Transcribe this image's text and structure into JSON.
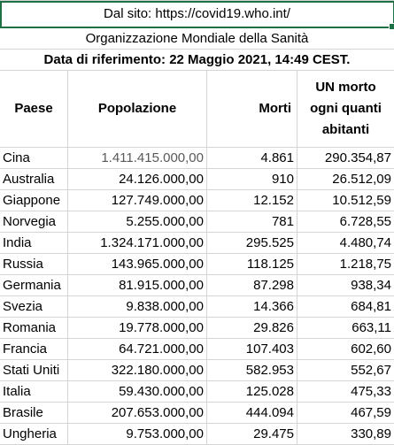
{
  "header": {
    "source": "Dal sito: https://covid19.who.int/",
    "organization": "Organizzazione Mondiale della Sanità",
    "reference_date": "Data di riferimento: 22 Maggio 2021, 14:49 CEST."
  },
  "columns": [
    "Paese",
    "Popolazione",
    "Morti",
    "UN morto ogni quanti abitanti"
  ],
  "rows": [
    [
      "Cina",
      "1.411.415.000,00",
      "4.861",
      "290.354,87"
    ],
    [
      "Australia",
      "24.126.000,00",
      "910",
      "26.512,09"
    ],
    [
      "Giappone",
      "127.749.000,00",
      "12.152",
      "10.512,59"
    ],
    [
      "Norvegia",
      "5.255.000,00",
      "781",
      "6.728,55"
    ],
    [
      "India",
      "1.324.171.000,00",
      "295.525",
      "4.480,74"
    ],
    [
      "Russia",
      "143.965.000,00",
      "118.125",
      "1.218,75"
    ],
    [
      "Germania",
      "81.915.000,00",
      "87.298",
      "938,34"
    ],
    [
      "Svezia",
      "9.838.000,00",
      "14.366",
      "684,81"
    ],
    [
      "Romania",
      "19.778.000,00",
      "29.826",
      "663,11"
    ],
    [
      "Francia",
      "64.721.000,00",
      "107.403",
      "602,60"
    ],
    [
      "Stati Uniti",
      "322.180.000,00",
      "582.953",
      "552,67"
    ],
    [
      "Italia",
      "59.430.000,00",
      "125.028",
      "475,33"
    ],
    [
      "Brasile",
      "207.653.000,00",
      "444.094",
      "467,59"
    ],
    [
      "Ungheria",
      "9.753.000,00",
      "29.475",
      "330,89"
    ]
  ],
  "colors": {
    "selection": "#1e7145",
    "gridline": "#d4d4d4"
  }
}
